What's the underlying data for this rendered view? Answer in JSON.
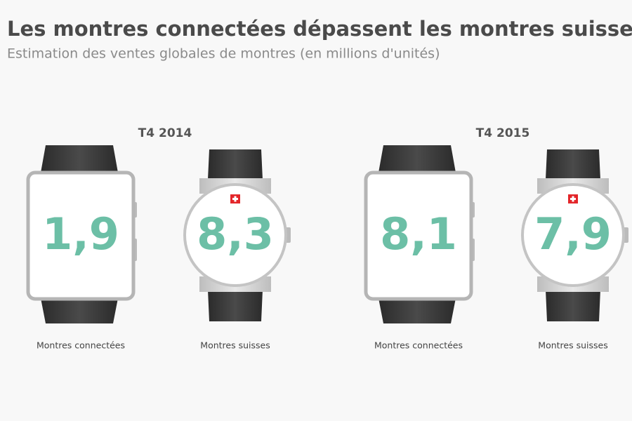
{
  "header": {
    "title": "Les montres connectées dépassent les montres suisses",
    "subtitle": "Estimation des ventes globales de montres (en millions d'unités)"
  },
  "groups": [
    {
      "label": "T4 2014",
      "items": [
        {
          "kind": "smart",
          "value": "1,9",
          "label": "Montres connectées"
        },
        {
          "kind": "swiss",
          "value": "8,3",
          "label": "Montres suisses"
        }
      ]
    },
    {
      "label": "T4 2015",
      "items": [
        {
          "kind": "smart",
          "value": "8,1",
          "label": "Montres connectées"
        },
        {
          "kind": "swiss",
          "value": "7,9",
          "label": "Montres suisses"
        }
      ]
    }
  ]
}
